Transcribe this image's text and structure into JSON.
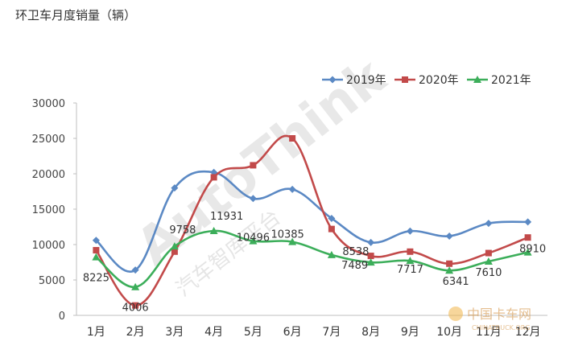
{
  "page": {
    "title": "环卫车月度销量（辆）"
  },
  "watermark": {
    "brand": "AutoThink",
    "brand_cn": "汽车智库平台",
    "source": "中国卡车网",
    "source_url": "CHINATRUCK.ORG"
  },
  "chart_data": {
    "type": "line",
    "title": "",
    "xlabel": "",
    "ylabel": "",
    "categories": [
      "1月",
      "2月",
      "3月",
      "4月",
      "5月",
      "6月",
      "7月",
      "8月",
      "9月",
      "10月",
      "11月",
      "12月"
    ],
    "ylim": [
      0,
      30000
    ],
    "yticks": [
      0,
      5000,
      10000,
      15000,
      20000,
      25000,
      30000
    ],
    "grid": false,
    "legend_position": "top-right",
    "series": [
      {
        "name": "2019年",
        "color": "#5b89c4",
        "marker": "diamond",
        "values": [
          10600,
          6400,
          18000,
          20200,
          16500,
          17800,
          13700,
          10300,
          11900,
          11200,
          13000,
          13200
        ],
        "labels": [
          "",
          "",
          "",
          "",
          "",
          "",
          "",
          "",
          "",
          "",
          "",
          ""
        ]
      },
      {
        "name": "2020年",
        "color": "#c24a4a",
        "marker": "square",
        "values": [
          9200,
          1400,
          9000,
          19500,
          21200,
          25000,
          12200,
          8400,
          9000,
          7300,
          8800,
          11000
        ],
        "labels": [
          "",
          "",
          "",
          "",
          "",
          "",
          "",
          "",
          "",
          "",
          "",
          ""
        ]
      },
      {
        "name": "2021年",
        "color": "#3cae5a",
        "marker": "triangle",
        "values": [
          8225,
          4006,
          9758,
          11931,
          10496,
          10385,
          8538,
          7489,
          7717,
          6341,
          7610,
          8910
        ],
        "labels": [
          "8225",
          "4006",
          "9758",
          "11931",
          "10496",
          "10385",
          "8538",
          "7489",
          "7717",
          "6341",
          "7610",
          "8910"
        ]
      }
    ]
  }
}
